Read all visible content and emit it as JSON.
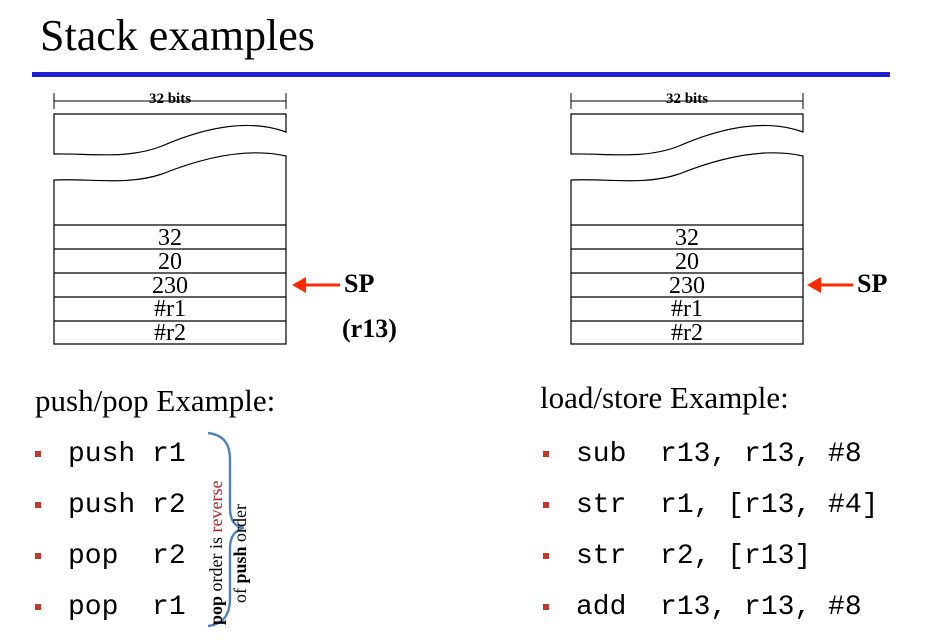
{
  "title": "Stack examples",
  "left_stack": {
    "width_label": "32 bits",
    "cells": [
      "32",
      "20",
      "230",
      "#r1",
      "#r2"
    ],
    "pointer_label": "SP",
    "pointer_sublabel": "(r13)"
  },
  "right_stack": {
    "width_label": "32 bits",
    "cells": [
      "32",
      "20",
      "230",
      "#r1",
      "#r2"
    ],
    "pointer_label": "SP"
  },
  "push_pop": {
    "heading": "push/pop Example:",
    "items": [
      "push r1",
      "push r2",
      "pop  r2",
      "pop  r1"
    ],
    "note": {
      "part1_bold": "pop",
      "part2": " order is ",
      "part3_red": "reverse",
      "part4": "of ",
      "part5_bold": "push",
      "part6": " order"
    }
  },
  "load_store": {
    "heading": "load/store Example:",
    "items": [
      "sub  r13, r13, #8",
      "str  r1, [r13, #4]",
      "str  r2, [r13]",
      "add  r13, r13, #8"
    ]
  },
  "colors": {
    "title_rule": "#1f1fd6",
    "arrow": "#ff2a00",
    "bullet": "#c0392b",
    "brace": "#4f81bd",
    "note_highlight": "#b22222"
  }
}
